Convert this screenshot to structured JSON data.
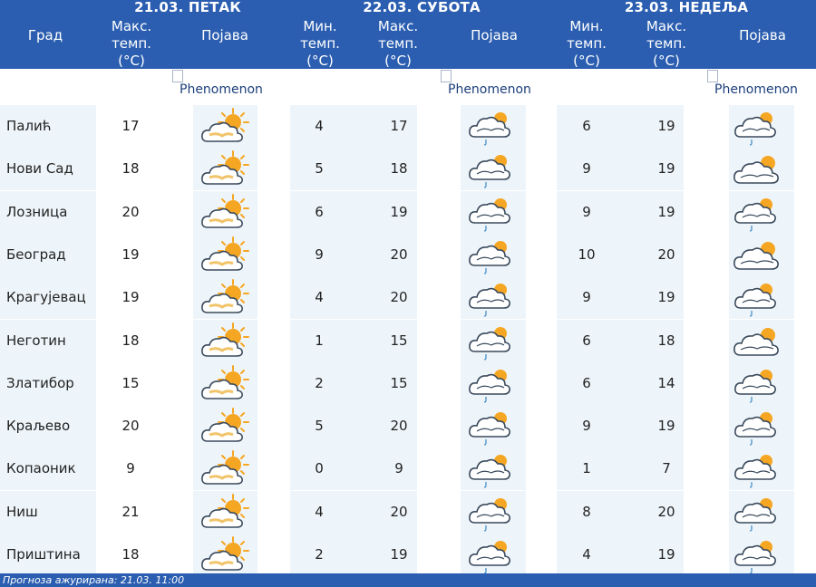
{
  "header": {
    "city_label": "Град",
    "days": [
      {
        "title": "21.03. ПЕТАК",
        "cols": [
          "Макс.\nтемп.\n(°C)",
          "Појава"
        ]
      },
      {
        "title": "22.03. СУБОТА",
        "cols": [
          "Мин.\nтемп.\n(°C)",
          "Макс.\nтемп.\n(°C)",
          "Појава"
        ]
      },
      {
        "title": "23.03. НЕДЕЉА",
        "cols": [
          "Мин.\nтемп.\n(°C)",
          "Макс.\nтемп.\n(°C)",
          "Појава"
        ]
      }
    ]
  },
  "phenomenon_alt": "Phenomenon",
  "icons": {
    "day1": "partly-cloudy-sun-icon",
    "day2": "cloud-sun-rain-icon",
    "day3_variants": [
      "cloud-sun-rain-icon",
      "cloud-sun-icon"
    ]
  },
  "rows": [
    {
      "city": "Палић",
      "d1_max": "17",
      "d2_min": "4",
      "d2_max": "17",
      "d3_min": "6",
      "d3_max": "19",
      "d3_icon": "cloud-sun-rain-icon"
    },
    {
      "city": "Нови Сад",
      "d1_max": "18",
      "d2_min": "5",
      "d2_max": "18",
      "d3_min": "9",
      "d3_max": "19",
      "d3_icon": "cloud-sun-icon"
    },
    {
      "city": "Лозница",
      "d1_max": "20",
      "d2_min": "6",
      "d2_max": "19",
      "d3_min": "9",
      "d3_max": "19",
      "d3_icon": "cloud-sun-rain-icon"
    },
    {
      "city": "Београд",
      "d1_max": "19",
      "d2_min": "9",
      "d2_max": "20",
      "d3_min": "10",
      "d3_max": "20",
      "d3_icon": "cloud-sun-icon"
    },
    {
      "city": "Крагујевац",
      "d1_max": "19",
      "d2_min": "4",
      "d2_max": "20",
      "d3_min": "9",
      "d3_max": "19",
      "d3_icon": "cloud-sun-rain-icon"
    },
    {
      "city": "Неготин",
      "d1_max": "18",
      "d2_min": "1",
      "d2_max": "15",
      "d3_min": "6",
      "d3_max": "18",
      "d3_icon": "cloud-sun-icon"
    },
    {
      "city": "Златибор",
      "d1_max": "15",
      "d2_min": "2",
      "d2_max": "15",
      "d3_min": "6",
      "d3_max": "14",
      "d3_icon": "cloud-sun-rain-icon"
    },
    {
      "city": "Краљево",
      "d1_max": "20",
      "d2_min": "5",
      "d2_max": "20",
      "d3_min": "9",
      "d3_max": "19",
      "d3_icon": "cloud-sun-rain-icon"
    },
    {
      "city": "Копаоник",
      "d1_max": "9",
      "d2_min": "0",
      "d2_max": "9",
      "d3_min": "1",
      "d3_max": "7",
      "d3_icon": "cloud-sun-rain-icon"
    },
    {
      "city": "Ниш",
      "d1_max": "21",
      "d2_min": "4",
      "d2_max": "20",
      "d3_min": "8",
      "d3_max": "20",
      "d3_icon": "cloud-sun-rain-icon"
    },
    {
      "city": "Приштина",
      "d1_max": "18",
      "d2_min": "2",
      "d2_max": "19",
      "d3_min": "4",
      "d3_max": "19",
      "d3_icon": "cloud-sun-rain-icon"
    }
  ],
  "footer": "Прогноза ажурирана:  21.03. 11:00",
  "colors": {
    "header_bg": "#2b5eb0",
    "row_alt_bg": "#eef5fa",
    "sun": "#f5a623",
    "cloud_stroke": "#3a4a5c"
  }
}
